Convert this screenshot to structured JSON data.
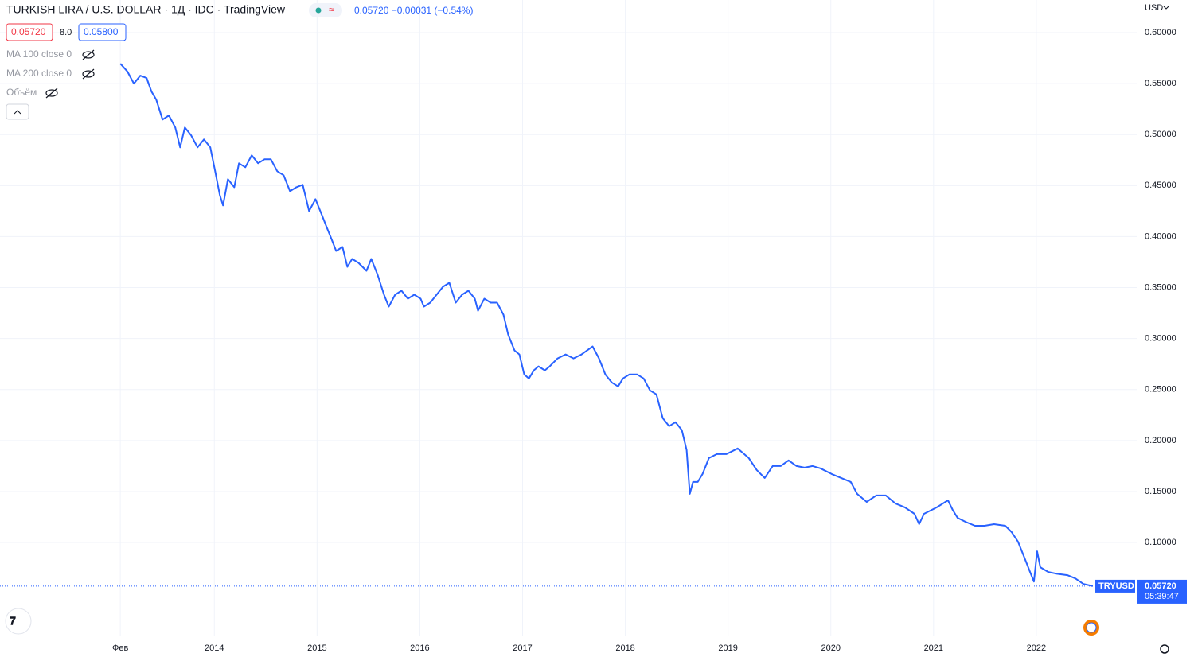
{
  "chart_data": {
    "type": "line",
    "title": "TURKISH LIRA / U.S. DOLLAR · 1Д · IDC · TradingView",
    "quote": "0.05720 −0.00031 (−0.54%)",
    "bid": "0.05720",
    "spread": "8.0",
    "ask": "0.05800",
    "indicators": [
      "MA 100 close 0",
      "MA 200 close 0",
      "Объём"
    ],
    "currency": "USD",
    "price_label": "0.05720",
    "countdown": "05:39:47",
    "xlim": [
      2011.914,
      2022.977
    ],
    "ylim": [
      0.008,
      0.632
    ],
    "xticks": [
      {
        "value": 2013.085,
        "label": "Фев"
      },
      2014,
      2015,
      2016,
      2017,
      2018,
      2019,
      2020,
      2021,
      2022
    ],
    "yticks": [
      {
        "value": 0.1,
        "label": "0.10000"
      },
      {
        "value": 0.15,
        "label": "0.15000"
      },
      {
        "value": 0.2,
        "label": "0.20000"
      },
      {
        "value": 0.25,
        "label": "0.25000"
      },
      {
        "value": 0.3,
        "label": "0.30000"
      },
      {
        "value": 0.35,
        "label": "0.35000"
      },
      {
        "value": 0.4,
        "label": "0.40000"
      },
      {
        "value": 0.45,
        "label": "0.45000"
      },
      {
        "value": 0.5,
        "label": "0.50000"
      },
      {
        "value": 0.55,
        "label": "0.55000"
      },
      {
        "value": 0.6,
        "label": "0.60000"
      }
    ],
    "grid": true,
    "x": [
      2013.085,
      2013.155,
      2013.217,
      2013.279,
      2013.341,
      2013.388,
      2013.434,
      2013.496,
      2013.558,
      2013.62,
      2013.667,
      2013.713,
      2013.775,
      2013.837,
      2013.899,
      2013.961,
      2014.008,
      2014.054,
      2014.085,
      2014.132,
      2014.194,
      2014.24,
      2014.302,
      2014.364,
      2014.426,
      2014.488,
      2014.55,
      2014.612,
      2014.674,
      2014.736,
      2014.798,
      2014.86,
      2014.922,
      2014.984,
      2015.047,
      2015.093,
      2015.14,
      2015.186,
      2015.248,
      2015.295,
      2015.341,
      2015.403,
      2015.481,
      2015.527,
      2015.589,
      2015.651,
      2015.698,
      2015.76,
      2015.822,
      2015.884,
      2015.946,
      2016.008,
      2016.039,
      2016.101,
      2016.163,
      2016.225,
      2016.287,
      2016.349,
      2016.411,
      2016.473,
      2016.535,
      2016.566,
      2016.628,
      2016.69,
      2016.752,
      2016.814,
      2016.86,
      2016.922,
      2016.969,
      2017.016,
      2017.062,
      2017.109,
      2017.155,
      2017.217,
      2017.264,
      2017.341,
      2017.419,
      2017.496,
      2017.574,
      2017.682,
      2017.744,
      2017.806,
      2017.868,
      2017.93,
      2017.977,
      2018.039,
      2018.116,
      2018.178,
      2018.24,
      2018.302,
      2018.364,
      2018.426,
      2018.488,
      2018.55,
      2018.597,
      2018.628,
      2018.659,
      2018.705,
      2018.752,
      2018.814,
      2018.891,
      2018.984,
      2019.093,
      2019.202,
      2019.279,
      2019.357,
      2019.434,
      2019.512,
      2019.589,
      2019.667,
      2019.744,
      2019.822,
      2019.899,
      2020.008,
      2020.101,
      2020.194,
      2020.256,
      2020.349,
      2020.442,
      2020.535,
      2020.628,
      2020.721,
      2020.814,
      2020.86,
      2020.907,
      2021.031,
      2021.14,
      2021.186,
      2021.233,
      2021.31,
      2021.403,
      2021.496,
      2021.589,
      2021.698,
      2021.76,
      2021.822,
      2021.884,
      2021.946,
      2021.977,
      2022.008,
      2022.039,
      2022.116,
      2022.194,
      2022.302,
      2022.38,
      2022.457,
      2022.55
    ],
    "series": [
      {
        "name": "TRYUSD",
        "color": "#2962ff",
        "values": [
          0.5695,
          0.5617,
          0.55,
          0.5578,
          0.5555,
          0.5422,
          0.5344,
          0.5148,
          0.5188,
          0.507,
          0.4875,
          0.507,
          0.4992,
          0.4875,
          0.4953,
          0.4875,
          0.4641,
          0.4406,
          0.4305,
          0.4563,
          0.4484,
          0.4719,
          0.468,
          0.4797,
          0.4719,
          0.4758,
          0.4758,
          0.4641,
          0.4602,
          0.4445,
          0.4484,
          0.4508,
          0.425,
          0.4367,
          0.4211,
          0.4094,
          0.3977,
          0.3859,
          0.3898,
          0.3703,
          0.3781,
          0.3742,
          0.3664,
          0.3781,
          0.3625,
          0.343,
          0.3313,
          0.343,
          0.3469,
          0.3391,
          0.343,
          0.3391,
          0.3313,
          0.3352,
          0.343,
          0.3508,
          0.3547,
          0.3352,
          0.343,
          0.3469,
          0.3391,
          0.3273,
          0.3391,
          0.3352,
          0.3352,
          0.3234,
          0.3039,
          0.2883,
          0.2844,
          0.2648,
          0.2609,
          0.2688,
          0.2727,
          0.2688,
          0.2727,
          0.2805,
          0.2844,
          0.2805,
          0.2844,
          0.2922,
          0.2805,
          0.2648,
          0.257,
          0.2531,
          0.2609,
          0.2648,
          0.2648,
          0.2609,
          0.2492,
          0.2453,
          0.2219,
          0.2141,
          0.218,
          0.2102,
          0.1906,
          0.1477,
          0.1594,
          0.1594,
          0.1672,
          0.1828,
          0.1867,
          0.1867,
          0.1922,
          0.1828,
          0.1711,
          0.1633,
          0.175,
          0.175,
          0.1805,
          0.175,
          0.1734,
          0.175,
          0.1727,
          0.1672,
          0.1633,
          0.1594,
          0.1477,
          0.1398,
          0.1461,
          0.1461,
          0.1383,
          0.1344,
          0.1281,
          0.118,
          0.1281,
          0.1344,
          0.1414,
          0.132,
          0.1242,
          0.1203,
          0.1164,
          0.1164,
          0.118,
          0.1164,
          0.1102,
          0.1008,
          0.0852,
          0.0695,
          0.0617,
          0.0914,
          0.0758,
          0.0711,
          0.0695,
          0.068,
          0.0648,
          0.0594,
          0.0572
        ]
      }
    ]
  }
}
